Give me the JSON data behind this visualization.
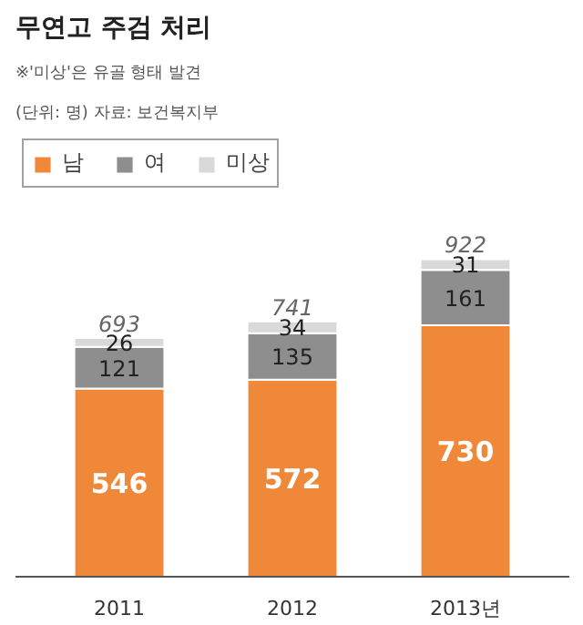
{
  "chart_data": {
    "type": "bar",
    "stacked": true,
    "title": "무연고 주검 처리",
    "subtitle": "※'미상'은 유골 형태 발견",
    "annotations": [
      "(단위: 명) 자료: 보건복지부"
    ],
    "categories": [
      "2011",
      "2012",
      "2013년"
    ],
    "series": [
      {
        "name": "남",
        "color": "#f0883a",
        "values": [
          546,
          572,
          730
        ]
      },
      {
        "name": "여",
        "color": "#8e8e8e",
        "values": [
          121,
          135,
          161
        ]
      },
      {
        "name": "미상",
        "color": "#d9d9d9",
        "values": [
          26,
          34,
          31
        ]
      }
    ],
    "totals": [
      "693",
      "741",
      "922"
    ],
    "data_labels": true,
    "legend": "top left",
    "grid": false
  }
}
